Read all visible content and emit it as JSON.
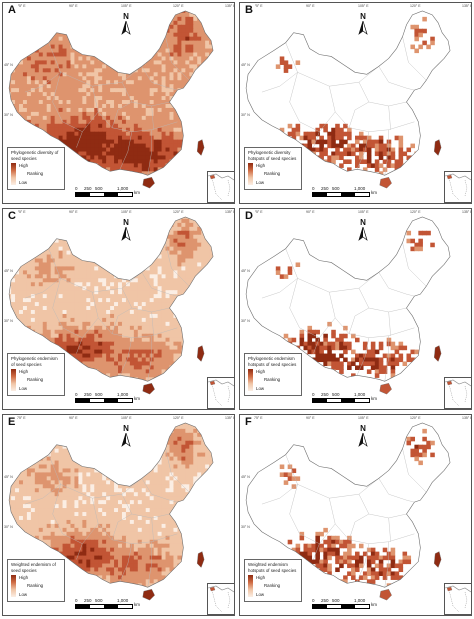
{
  "colors": {
    "high": "#8f2b12",
    "mid_high": "#c25535",
    "mid": "#de946e",
    "low_mid": "#f0c5a6",
    "low": "#fbeee4",
    "background": "#ffffff",
    "province_borders": "#b9b9b9"
  },
  "longitude_ticks": [
    "75° E",
    "90° E",
    "105° E",
    "120° E",
    "135° E"
  ],
  "latitude_ticks": [
    "45° N",
    "30° N"
  ],
  "north_arrow_label": "N",
  "scale_bar": {
    "ticks": [
      "0",
      "250",
      "500",
      "1,000"
    ],
    "unit": "km"
  },
  "legend_labels": {
    "high": "High",
    "ranking": "Ranking",
    "low": "Low"
  },
  "panels": [
    {
      "label": "A",
      "legend_title": "Phylogenetic diversity of seed species",
      "map_type": "diversity",
      "overall_intensity": "high"
    },
    {
      "label": "B",
      "legend_title": "Phylogenetic diversity hotspots of seed species",
      "map_type": "hotspots",
      "overall_intensity": "low"
    },
    {
      "label": "C",
      "legend_title": "Phylogenetic endemism of seed species",
      "map_type": "endemism",
      "overall_intensity": "medium"
    },
    {
      "label": "D",
      "legend_title": "Phylogenetic endemism hotspots of seed species",
      "map_type": "hotspots",
      "overall_intensity": "low"
    },
    {
      "label": "E",
      "legend_title": "Weighted endemism of seed species",
      "map_type": "endemism",
      "overall_intensity": "medium"
    },
    {
      "label": "F",
      "legend_title": "Weighted endemism hotspots of seed species",
      "map_type": "hotspots",
      "overall_intensity": "low"
    }
  ]
}
